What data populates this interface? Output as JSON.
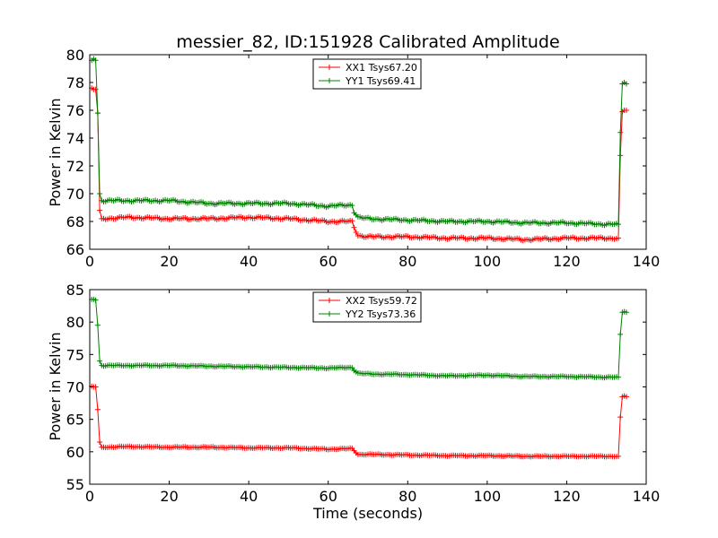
{
  "chart_data": [
    {
      "type": "line",
      "title": "messier_82, ID:151928 Calibrated Amplitude",
      "xlabel": "",
      "ylabel": "Power in Kelvin",
      "xlim": [
        0,
        140
      ],
      "ylim": [
        66,
        80
      ],
      "xticks": [
        0,
        20,
        40,
        60,
        80,
        100,
        120,
        140
      ],
      "yticks": [
        66,
        68,
        70,
        72,
        74,
        76,
        78,
        80
      ],
      "legend_position": "top-center",
      "series": [
        {
          "name": "XX1 Tsys67.20",
          "color": "#ff0000",
          "x": [
            0.5,
            1.0,
            1.5,
            2.0,
            2.5,
            3,
            10,
            20,
            30,
            40,
            50,
            60,
            66,
            66.5,
            67.5,
            70,
            80,
            90,
            100,
            110,
            120,
            130,
            133,
            133.3,
            133.7,
            134,
            134.5,
            135
          ],
          "y": [
            77.6,
            77.5,
            77.5,
            75.8,
            68.8,
            68.2,
            68.3,
            68.2,
            68.2,
            68.3,
            68.2,
            68.0,
            68.0,
            67.6,
            67.0,
            66.9,
            66.9,
            66.8,
            66.8,
            66.7,
            66.8,
            66.8,
            66.8,
            70.0,
            75.5,
            75.9,
            76.0,
            76.0
          ]
        },
        {
          "name": "YY1 Tsys69.41",
          "color": "#008000",
          "x": [
            0.5,
            1.0,
            1.5,
            2.0,
            2.5,
            3,
            10,
            20,
            30,
            40,
            50,
            60,
            66,
            66.5,
            67.5,
            70,
            80,
            90,
            100,
            110,
            120,
            130,
            133,
            133.3,
            133.7,
            134,
            134.5,
            135
          ],
          "y": [
            79.6,
            79.7,
            79.6,
            75.8,
            70.0,
            69.5,
            69.5,
            69.5,
            69.3,
            69.3,
            69.3,
            69.1,
            69.2,
            68.7,
            68.3,
            68.2,
            68.1,
            68.0,
            68.0,
            67.9,
            67.9,
            67.8,
            67.8,
            71.2,
            77.6,
            77.9,
            78.0,
            77.9
          ]
        }
      ]
    },
    {
      "type": "line",
      "title": "",
      "xlabel": "Time (seconds)",
      "ylabel": "Power in Kelvin",
      "xlim": [
        0,
        140
      ],
      "ylim": [
        55,
        85
      ],
      "xticks": [
        0,
        20,
        40,
        60,
        80,
        100,
        120,
        140
      ],
      "yticks": [
        55,
        60,
        65,
        70,
        75,
        80,
        85
      ],
      "legend_position": "top-center",
      "series": [
        {
          "name": "XX2 Tsys59.72",
          "color": "#ff0000",
          "x": [
            0.5,
            1.0,
            1.5,
            2.0,
            2.5,
            3,
            10,
            20,
            30,
            40,
            50,
            60,
            66,
            66.5,
            67.5,
            70,
            80,
            90,
            100,
            110,
            120,
            130,
            133,
            133.3,
            133.7,
            134,
            134.5,
            135
          ],
          "y": [
            70.1,
            70.0,
            70.0,
            66.5,
            61.5,
            60.7,
            60.8,
            60.7,
            60.7,
            60.6,
            60.6,
            60.4,
            60.5,
            60.2,
            59.6,
            59.6,
            59.5,
            59.4,
            59.4,
            59.3,
            59.3,
            59.3,
            59.3,
            62.5,
            68.2,
            68.5,
            68.6,
            68.5
          ]
        },
        {
          "name": "YY2 Tsys73.36",
          "color": "#008000",
          "x": [
            0.5,
            1.0,
            1.5,
            2.0,
            2.5,
            3,
            10,
            20,
            30,
            40,
            50,
            60,
            66,
            66.5,
            67.5,
            70,
            80,
            90,
            100,
            110,
            120,
            130,
            133,
            133.3,
            133.7,
            134,
            134.5,
            135
          ],
          "y": [
            83.5,
            83.5,
            83.4,
            79.5,
            74.0,
            73.3,
            73.3,
            73.3,
            73.2,
            73.1,
            73.0,
            72.9,
            73.0,
            72.6,
            72.1,
            72.0,
            71.9,
            71.7,
            71.8,
            71.6,
            71.6,
            71.5,
            71.5,
            75.0,
            81.2,
            81.5,
            81.6,
            81.5
          ]
        }
      ]
    }
  ]
}
